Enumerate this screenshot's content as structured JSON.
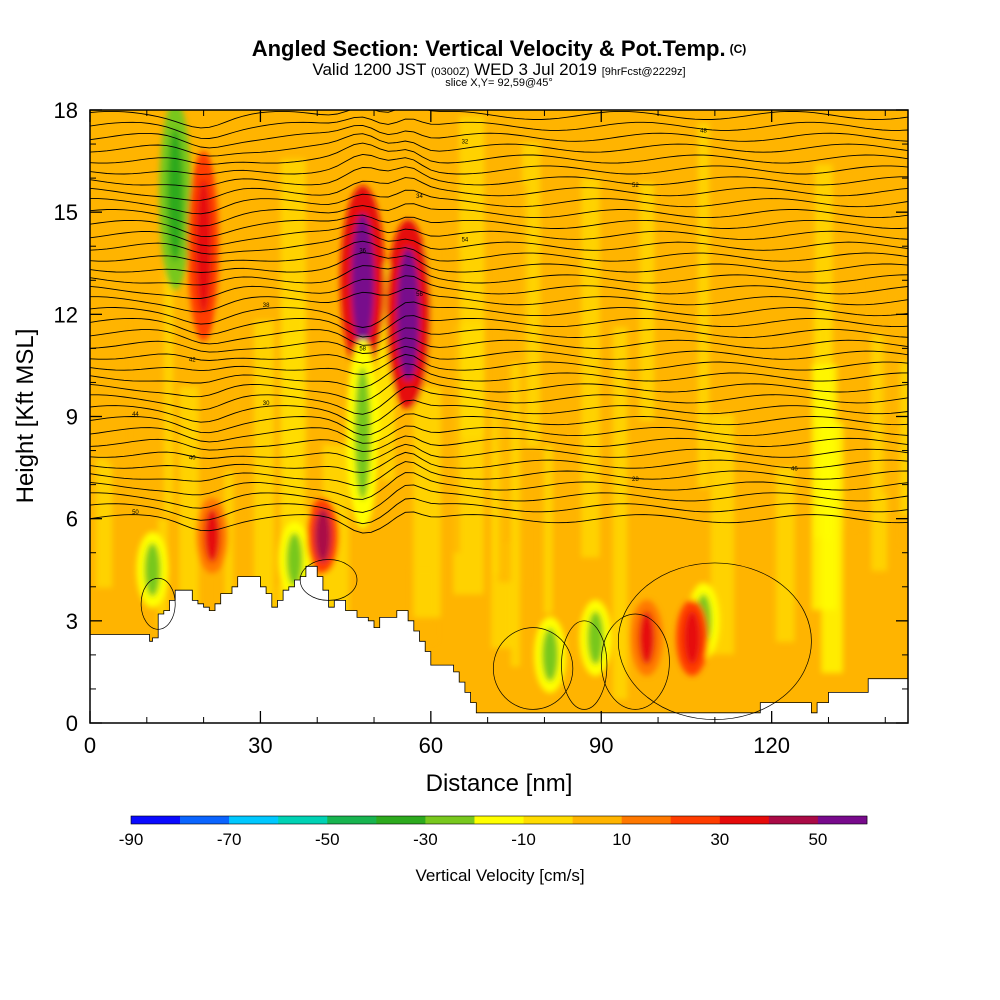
{
  "chart_data": {
    "type": "heatmap",
    "title": "Angled Section: Vertical Velocity & Pot.Temp.",
    "title_mark": "(C)",
    "subtitle_main": "Valid 1200 JST",
    "subtitle_utc": "(0300Z)",
    "subtitle_date": "WED 3 Jul 2019",
    "subtitle_run": "[9hrFcst@2229z]",
    "slice_label": "slice X,Y= 92,59@45°",
    "xlabel": "Distance [nm]",
    "ylabel": "Height [Kft MSL]",
    "xlim": [
      0,
      144
    ],
    "ylim": [
      0,
      18
    ],
    "x_ticks": [
      "0",
      "30",
      "60",
      "90",
      "120"
    ],
    "y_ticks": [
      "0",
      "3",
      "6",
      "9",
      "12",
      "15",
      "18"
    ],
    "colorbar": {
      "label": "Vertical Velocity [cm/s]",
      "tick_labels": [
        "-90",
        "-70",
        "-50",
        "-30",
        "-10",
        "10",
        "30",
        "50"
      ],
      "bins": [
        -90,
        -80,
        -70,
        -60,
        -50,
        -40,
        -30,
        -20,
        -10,
        0,
        10,
        20,
        30,
        40,
        50,
        60
      ],
      "colors": [
        "#0a0aff",
        "#0a64ff",
        "#00c8ff",
        "#00d2b4",
        "#18b450",
        "#2daa1e",
        "#78c81e",
        "#ffff00",
        "#ffdc00",
        "#ffb400",
        "#ff7800",
        "#ff3c00",
        "#e60a0a",
        "#aa0a46",
        "#780a8c"
      ]
    },
    "theta_labels": [
      "50",
      "40",
      "30",
      "58",
      "56",
      "54",
      "52",
      "48",
      "46",
      "44",
      "42",
      "38",
      "36",
      "34",
      "32",
      "28"
    ],
    "terrain": {
      "x": [
        0,
        10,
        10.5,
        11,
        12,
        13,
        14,
        15,
        16,
        17,
        18,
        19,
        20,
        21,
        22,
        23,
        24,
        25,
        26,
        28,
        30,
        31,
        32,
        33,
        34,
        35,
        36,
        37,
        38,
        39,
        40,
        41,
        42,
        43,
        44,
        45,
        46,
        47,
        48,
        49,
        50,
        51,
        52,
        53,
        54,
        55,
        56,
        57,
        58,
        59,
        60,
        61,
        62,
        63,
        64,
        65,
        66,
        67,
        68,
        70,
        75,
        80,
        85,
        90,
        95,
        100,
        105,
        110,
        115,
        118,
        120,
        125,
        127,
        128,
        130,
        135,
        137,
        140,
        144
      ],
      "y": [
        2.6,
        2.6,
        2.4,
        2.5,
        3.2,
        3.3,
        3.6,
        3.9,
        3.9,
        3.9,
        3.6,
        3.5,
        3.4,
        3.3,
        3.5,
        3.8,
        3.8,
        4.0,
        4.3,
        4.3,
        4.0,
        3.8,
        3.4,
        3.6,
        3.9,
        4.0,
        4.2,
        4.3,
        4.6,
        4.6,
        4.3,
        3.9,
        3.4,
        3.6,
        3.6,
        3.3,
        3.3,
        3.1,
        3.1,
        3.0,
        2.8,
        3.1,
        3.1,
        3.1,
        3.3,
        3.3,
        3.0,
        2.7,
        2.4,
        2.1,
        1.7,
        1.7,
        1.7,
        1.7,
        1.5,
        1.2,
        0.9,
        0.6,
        0.3,
        0.3,
        0.3,
        0.3,
        0.3,
        0.3,
        0.3,
        0.3,
        0.3,
        0.3,
        0.3,
        0.6,
        0.6,
        0.6,
        0.3,
        0.6,
        0.9,
        0.9,
        1.3,
        1.3,
        1.3
      ]
    },
    "velocity_features": [
      {
        "x": 15,
        "y": 15.5,
        "value": -35
      },
      {
        "x": 11,
        "y": 4.5,
        "value": -30
      },
      {
        "x": 20,
        "y": 14,
        "value": 35
      },
      {
        "x": 21.5,
        "y": 5.5,
        "value": 30
      },
      {
        "x": 36,
        "y": 4.8,
        "value": -25
      },
      {
        "x": 41,
        "y": 5.5,
        "value": 40
      },
      {
        "x": 48,
        "y": 13,
        "value": 60
      },
      {
        "x": 56,
        "y": 12,
        "value": 55
      },
      {
        "x": 48,
        "y": 8.5,
        "value": -30
      },
      {
        "x": 81,
        "y": 2.0,
        "value": -30
      },
      {
        "x": 89,
        "y": 2.5,
        "value": -25
      },
      {
        "x": 98,
        "y": 2.5,
        "value": 30
      },
      {
        "x": 108,
        "y": 3.0,
        "value": -30
      },
      {
        "x": 106,
        "y": 2.5,
        "value": 35
      }
    ]
  }
}
